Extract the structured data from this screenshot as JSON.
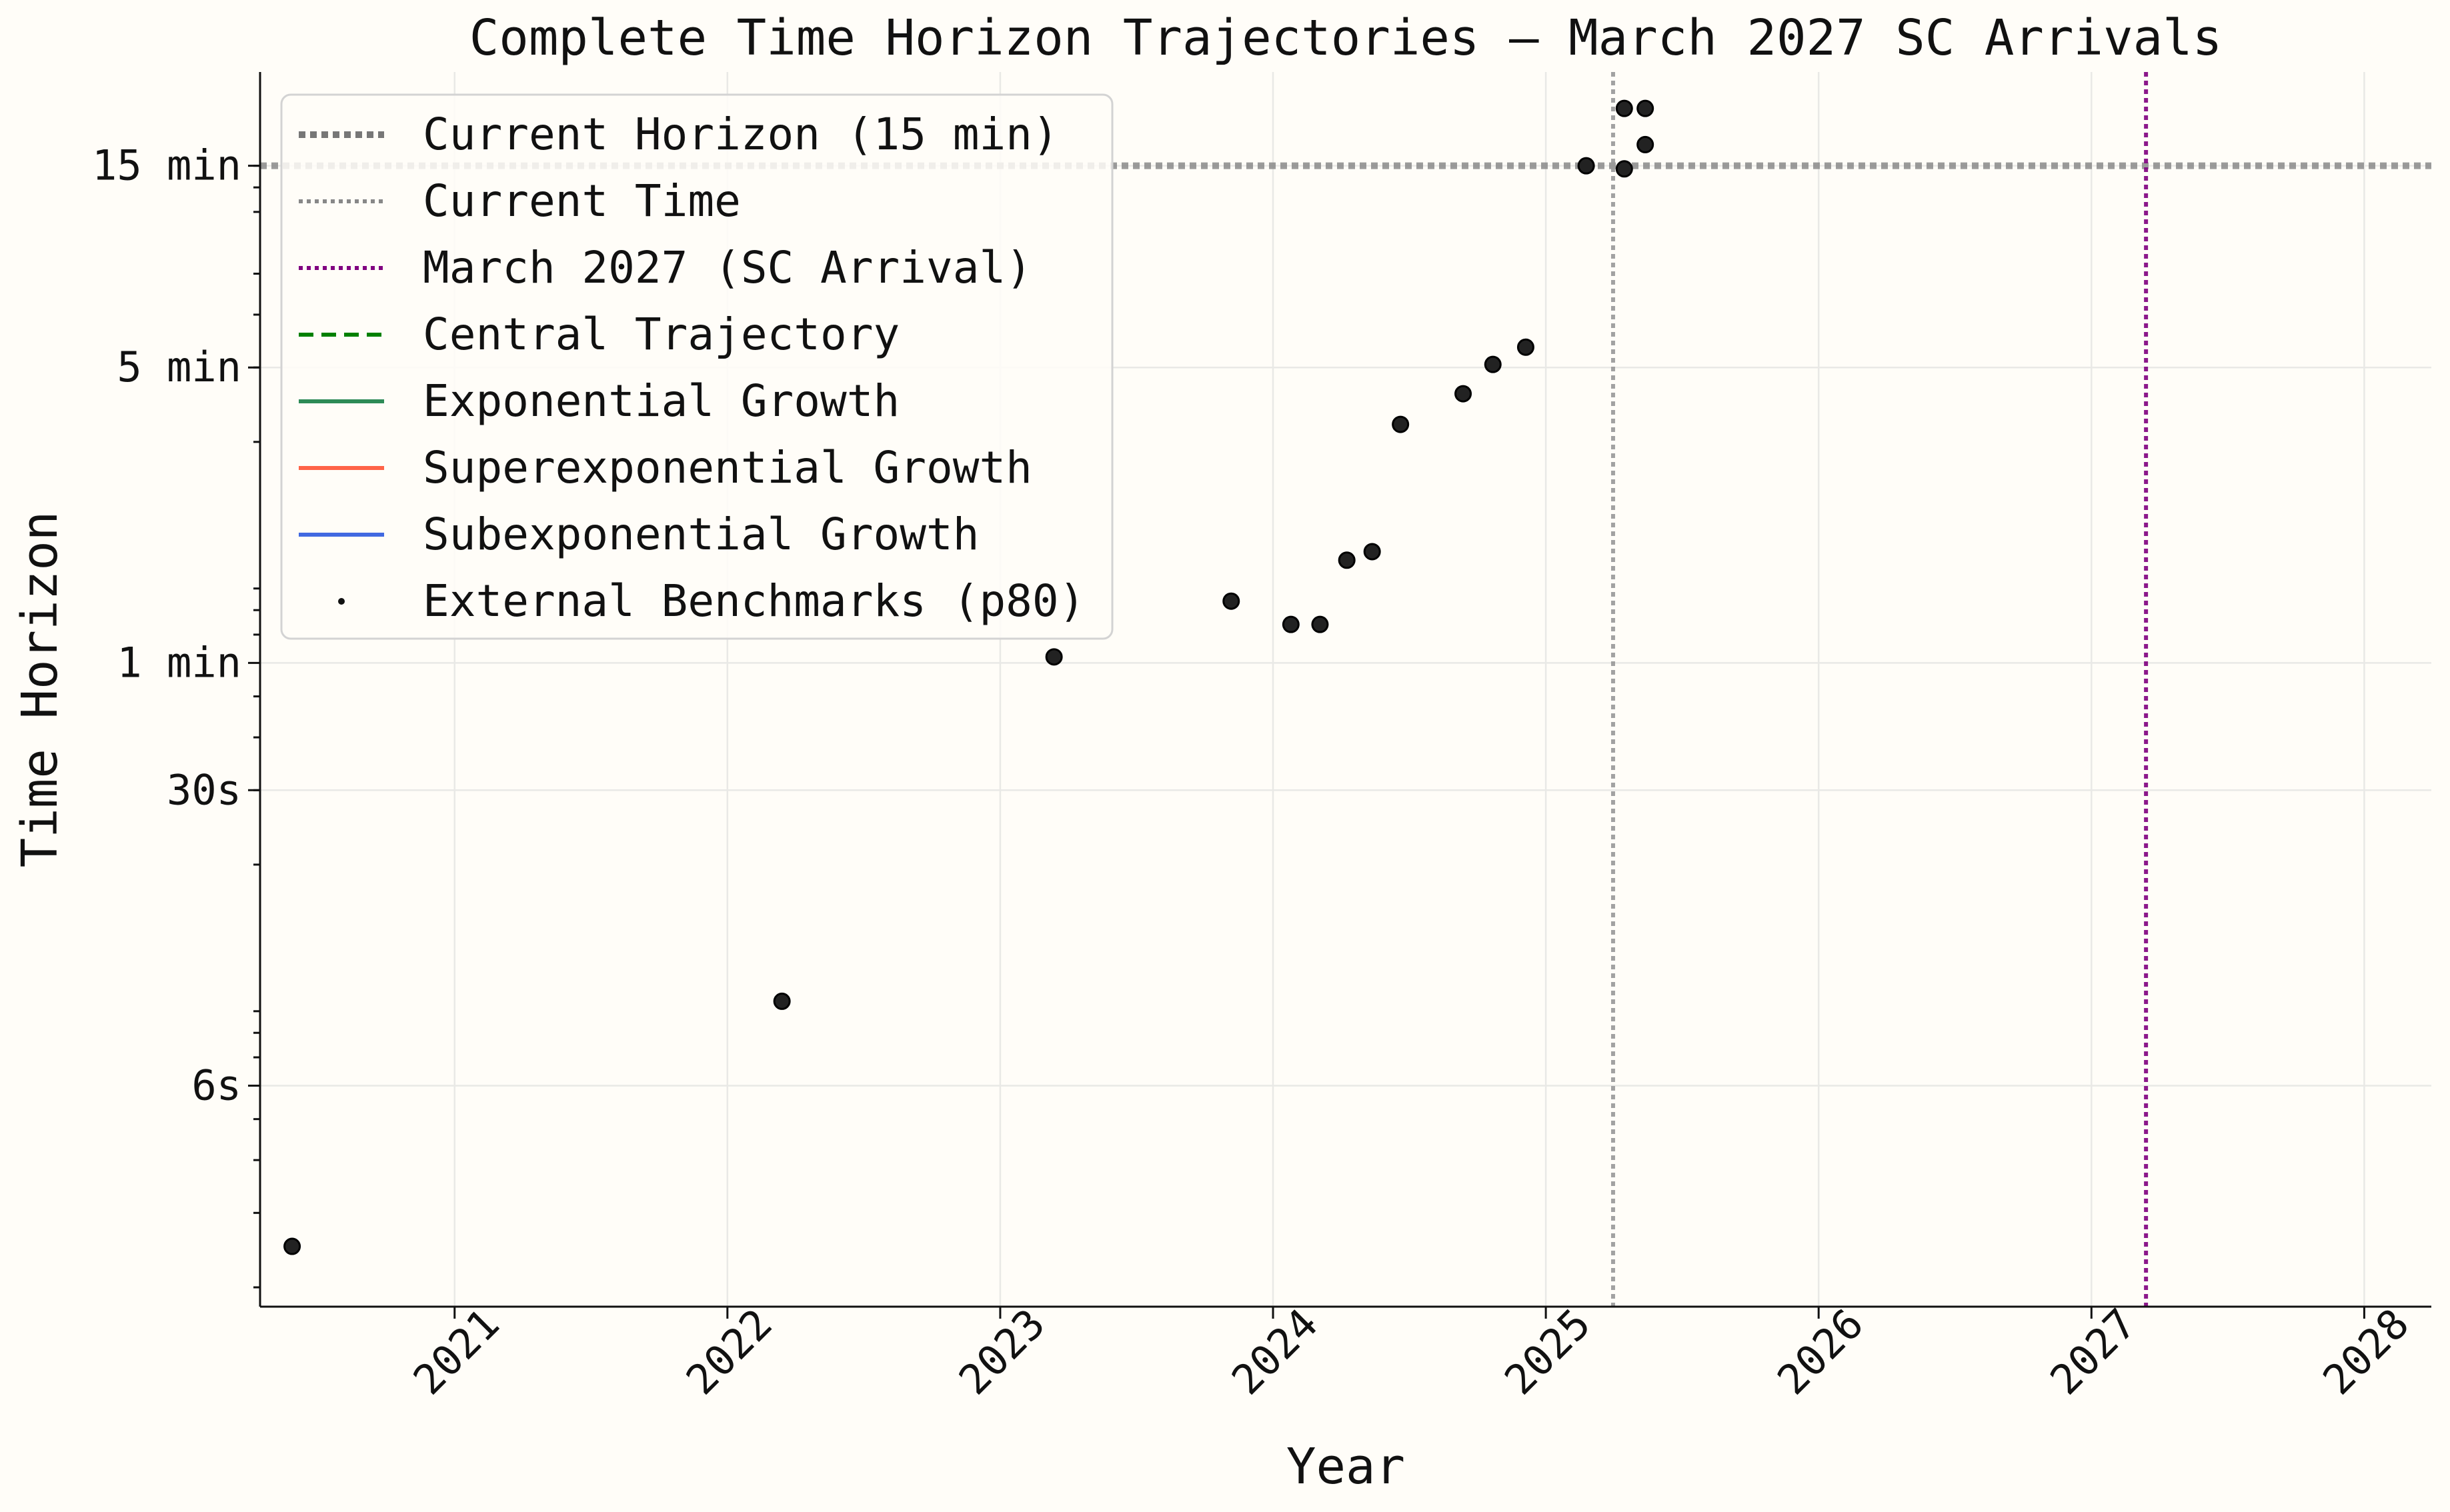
{
  "chart_data": {
    "type": "scatter",
    "title": "Complete Time Horizon Trajectories – March 2027 SC Arrivals",
    "xlabel": "Year",
    "ylabel": "Time Horizon",
    "x_axis": {
      "type": "date",
      "range": [
        "2020-04-15",
        "2028-03-31"
      ],
      "ticks": [
        "2021",
        "2022",
        "2023",
        "2024",
        "2025",
        "2026",
        "2027",
        "2028"
      ]
    },
    "y_axis": {
      "scale": "log",
      "unit": "seconds",
      "range": [
        1.8,
        1500
      ],
      "ticks": [
        {
          "value": 6,
          "label": "6s"
        },
        {
          "value": 30,
          "label": "30s"
        },
        {
          "value": 60,
          "label": "1 min"
        },
        {
          "value": 300,
          "label": "5 min"
        },
        {
          "value": 900,
          "label": "15 min"
        }
      ]
    },
    "grid": true,
    "legend_position": "top-left",
    "reference_lines": [
      {
        "orientation": "horizontal",
        "name": "Current Horizon (15 min)",
        "value": 900,
        "color": "#8a8a8a",
        "style": "dotted"
      },
      {
        "orientation": "vertical",
        "name": "Current Time",
        "value": "2025-04-01",
        "color": "#999999",
        "style": "dotted"
      },
      {
        "orientation": "vertical",
        "name": "March 2027 (SC Arrival)",
        "value": "2027-03-15",
        "color": "#800080",
        "style": "dotted"
      }
    ],
    "legend": [
      {
        "label": "Current Horizon (15 min)",
        "kind": "dotted-thick",
        "color": "#777777"
      },
      {
        "label": "Current Time",
        "kind": "dotted",
        "color": "#888888"
      },
      {
        "label": "March 2027 (SC Arrival)",
        "kind": "dotted",
        "color": "#800080"
      },
      {
        "label": "Central Trajectory",
        "kind": "dashed",
        "color": "#008000"
      },
      {
        "label": "Exponential Growth",
        "kind": "solid",
        "color": "#2e8b57"
      },
      {
        "label": "Superexponential Growth",
        "kind": "solid",
        "color": "#ff6347"
      },
      {
        "label": "Subexponential Growth",
        "kind": "solid",
        "color": "#4169e1"
      },
      {
        "label": "External Benchmarks (p80)",
        "kind": "dot",
        "color": "#111111"
      }
    ],
    "series": [
      {
        "name": "External Benchmarks (p80)",
        "color": "#222222",
        "points": [
          {
            "x": "2020-05-28",
            "y": 2.5
          },
          {
            "x": "2022-03-15",
            "y": 9.5
          },
          {
            "x": "2023-03-14",
            "y": 62
          },
          {
            "x": "2023-11-06",
            "y": 84
          },
          {
            "x": "2024-01-25",
            "y": 74
          },
          {
            "x": "2024-03-04",
            "y": 74
          },
          {
            "x": "2024-04-09",
            "y": 105
          },
          {
            "x": "2024-05-13",
            "y": 110
          },
          {
            "x": "2024-06-20",
            "y": 220
          },
          {
            "x": "2024-09-12",
            "y": 260
          },
          {
            "x": "2024-10-22",
            "y": 305
          },
          {
            "x": "2024-12-05",
            "y": 335
          },
          {
            "x": "2025-02-24",
            "y": 900
          },
          {
            "x": "2025-04-16",
            "y": 1230
          },
          {
            "x": "2025-04-16",
            "y": 885
          },
          {
            "x": "2025-05-14",
            "y": 1230
          },
          {
            "x": "2025-05-14",
            "y": 1010
          }
        ]
      }
    ]
  }
}
